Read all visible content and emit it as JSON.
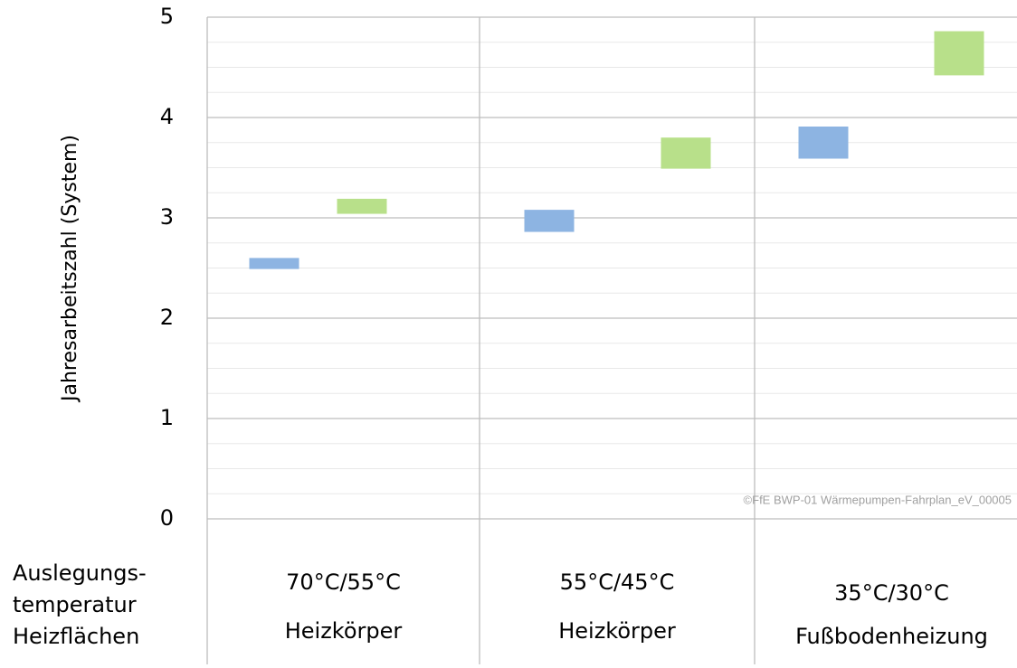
{
  "chart_data": {
    "type": "floating_bar",
    "y_axis_label": "Jahresarbeitszahl (System)",
    "row_header": [
      "Auslegungs-",
      "temperatur",
      "Heizflächen"
    ],
    "categories": [
      "70°C/55°C",
      "55°C/45°C",
      "35°C/30°C"
    ],
    "category_sublabels": [
      "Heizkörper",
      "Heizkörper",
      "Fußbodenheizung"
    ],
    "series": [
      {
        "color": "#8db4e2",
        "low": [
          2.49,
          2.86,
          3.59
        ],
        "high": [
          2.6,
          3.08,
          3.91
        ]
      },
      {
        "color": "#b8e08a",
        "low": [
          3.04,
          3.49,
          4.42
        ],
        "high": [
          3.19,
          3.8,
          4.86
        ]
      }
    ],
    "ylim": [
      0,
      5
    ],
    "yticks": [
      0,
      1,
      2,
      3,
      4,
      5
    ],
    "yticks_minor": [
      0.25,
      0.5,
      0.75,
      1.25,
      1.5,
      1.75,
      2.25,
      2.5,
      2.75,
      3.25,
      3.5,
      3.75,
      4.25,
      4.5,
      4.75
    ],
    "grid": true,
    "annotation": "©FfE BWP-01 Wärmepumpen-Fahrplan_eV_00005"
  }
}
